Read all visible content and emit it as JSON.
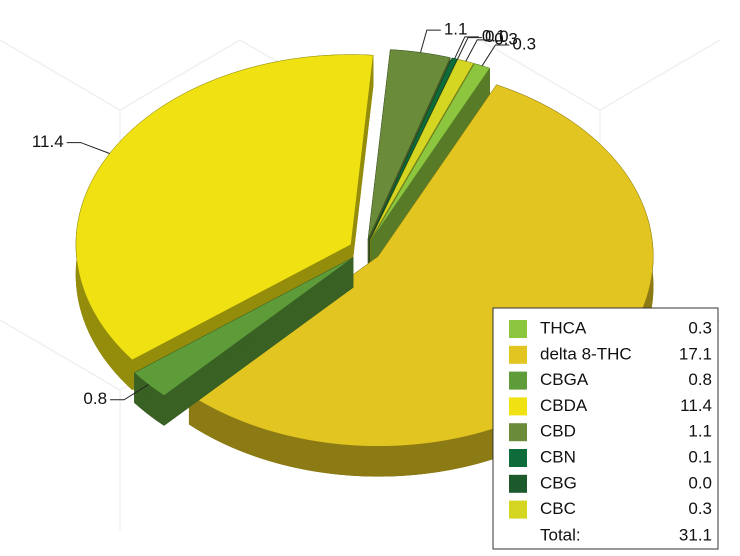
{
  "chart_data": {
    "type": "pie3d",
    "categories": [
      "THCA",
      "delta 8-THC",
      "CBGA",
      "CBDA",
      "CBD",
      "CBN",
      "CBG",
      "CBC"
    ],
    "values": [
      0.3,
      17.1,
      0.8,
      11.4,
      1.1,
      0.1,
      0.0,
      0.3
    ],
    "value_labels": [
      "0.3",
      "17.1",
      "0.8",
      "11.4",
      "1.1",
      "0.1",
      "0.0",
      "0.3"
    ],
    "colors": [
      "#8cc63e",
      "#e2c520",
      "#5e9c3a",
      "#efe112",
      "#6a8c3a",
      "#0d6c3a",
      "#1c5a2c",
      "#d5d622"
    ],
    "total_label": "Total:",
    "total": 31.1
  }
}
